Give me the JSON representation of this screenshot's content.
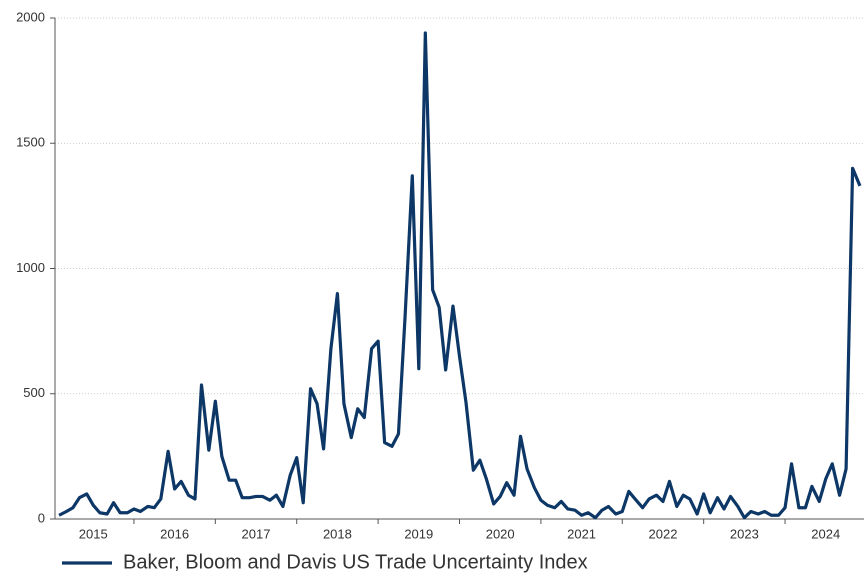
{
  "chart_data": {
    "type": "line",
    "x": [
      2014.58,
      2014.67,
      2014.75,
      2014.83,
      2014.92,
      2015.0,
      2015.08,
      2015.17,
      2015.25,
      2015.33,
      2015.42,
      2015.5,
      2015.58,
      2015.67,
      2015.75,
      2015.83,
      2015.92,
      2016.0,
      2016.08,
      2016.17,
      2016.25,
      2016.33,
      2016.42,
      2016.5,
      2016.58,
      2016.67,
      2016.75,
      2016.83,
      2016.92,
      2017.0,
      2017.08,
      2017.17,
      2017.25,
      2017.33,
      2017.42,
      2017.5,
      2017.58,
      2017.67,
      2017.75,
      2017.83,
      2017.92,
      2018.0,
      2018.08,
      2018.17,
      2018.25,
      2018.33,
      2018.42,
      2018.5,
      2018.58,
      2018.67,
      2018.75,
      2018.83,
      2018.92,
      2019.0,
      2019.08,
      2019.17,
      2019.25,
      2019.33,
      2019.42,
      2019.5,
      2019.58,
      2019.67,
      2019.75,
      2019.83,
      2019.92,
      2020.0,
      2020.08,
      2020.17,
      2020.25,
      2020.33,
      2020.42,
      2020.5,
      2020.58,
      2020.67,
      2020.75,
      2020.83,
      2020.92,
      2021.0,
      2021.08,
      2021.17,
      2021.25,
      2021.33,
      2021.42,
      2021.5,
      2021.58,
      2021.67,
      2021.75,
      2021.83,
      2021.92,
      2022.0,
      2022.08,
      2022.17,
      2022.25,
      2022.33,
      2022.42,
      2022.5,
      2022.58,
      2022.67,
      2022.75,
      2022.83,
      2022.92,
      2023.0,
      2023.08,
      2023.17,
      2023.25,
      2023.33,
      2023.42,
      2023.5,
      2023.58,
      2023.67,
      2023.75,
      2023.83,
      2023.92,
      2024.0,
      2024.08,
      2024.17,
      2024.25,
      2024.33,
      2024.42
    ],
    "series": [
      {
        "name": "Baker, Bloom and Davis US Trade Uncertainty Index",
        "color": "#0d3766",
        "values": [
          15,
          30,
          45,
          85,
          100,
          55,
          25,
          20,
          65,
          25,
          25,
          40,
          30,
          50,
          45,
          80,
          270,
          120,
          150,
          95,
          80,
          535,
          275,
          470,
          250,
          155,
          155,
          85,
          85,
          90,
          90,
          75,
          95,
          50,
          175,
          245,
          65,
          520,
          460,
          280,
          680,
          900,
          460,
          325,
          440,
          405,
          680,
          710,
          305,
          290,
          340,
          800,
          1370,
          600,
          1940,
          915,
          845,
          595,
          850,
          650,
          465,
          195,
          235,
          160,
          60,
          90,
          145,
          95,
          330,
          200,
          125,
          75,
          55,
          45,
          70,
          40,
          35,
          15,
          25,
          5,
          35,
          50,
          20,
          30,
          110,
          75,
          45,
          80,
          95,
          70,
          150,
          50,
          95,
          80,
          20,
          100,
          25,
          85,
          40,
          90,
          50,
          5,
          30,
          20,
          30,
          15,
          15,
          45,
          220,
          45,
          45,
          130,
          70,
          160,
          220,
          95,
          200,
          1400,
          1330
        ]
      }
    ],
    "xlim": [
      2014.53,
      2024.47
    ],
    "xticks": [
      {
        "value": 2015.5,
        "label": "2015"
      },
      {
        "value": 2016.5,
        "label": "2016"
      },
      {
        "value": 2017.5,
        "label": "2017"
      },
      {
        "value": 2018.5,
        "label": "2018"
      },
      {
        "value": 2019.5,
        "label": "2019"
      },
      {
        "value": 2020.5,
        "label": "2020"
      },
      {
        "value": 2021.5,
        "label": "2021"
      },
      {
        "value": 2022.5,
        "label": "2022"
      },
      {
        "value": 2023.5,
        "label": "2023"
      },
      {
        "value": 2024.5,
        "label": "2024"
      }
    ],
    "ylim": [
      0,
      2000
    ],
    "yticks": [
      0,
      500,
      1000,
      1500,
      2000
    ],
    "grid": true
  }
}
